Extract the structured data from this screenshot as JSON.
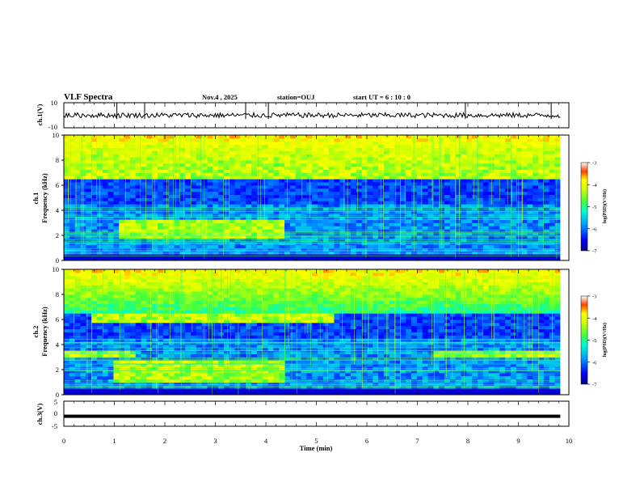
{
  "header": {
    "title": "VLF Spectra",
    "date": "Nov.4 , 2025",
    "station": "station=OUJ",
    "start_ut": "start  UT =  6 : 10 : 0"
  },
  "chart_data": {
    "type": "heatmap",
    "title": "VLF Spectra",
    "xlabel": "Time  (min)",
    "xlim": [
      0,
      10
    ],
    "xticks": [
      "0",
      "1",
      "2",
      "3",
      "4",
      "5",
      "6",
      "7",
      "8",
      "9",
      "10"
    ],
    "data_end_min": 9.83,
    "panels": [
      {
        "id": "ch1-waveform",
        "type": "line",
        "ylabel": "ch.1(V)",
        "ylim": [
          -10,
          10
        ],
        "yticks": [
          "10",
          "-10"
        ],
        "baseline": 0,
        "amplitude_typical": 2
      },
      {
        "id": "ch1-spectrogram",
        "type": "heatmap",
        "ylabel_line1": "ch.1",
        "ylabel_line2": "Frequency  (kHz)",
        "ylim": [
          0,
          10
        ],
        "yticks": [
          "0",
          "2",
          "4",
          "6",
          "8",
          "10"
        ],
        "colorbar": {
          "label": "log(PSD)(V²/Hz)",
          "range": [
            -7,
            -3
          ],
          "ticks": [
            "-3",
            "-4",
            "-5",
            "-6",
            "-7"
          ]
        },
        "features": [
          {
            "t0": 1.05,
            "t1": 4.4,
            "f0": 1.8,
            "f1": 3.3,
            "label": "enhanced band 1.8-3.3 kHz"
          },
          {
            "t0": 0,
            "t1": 9.83,
            "f0": 6.5,
            "f1": 10,
            "label": "broadband upper emission"
          }
        ]
      },
      {
        "id": "ch2-spectrogram",
        "type": "heatmap",
        "ylabel_line1": "ch.2",
        "ylabel_line2": "Frequency  (kHz)",
        "ylim": [
          0,
          10
        ],
        "yticks": [
          "0",
          "2",
          "4",
          "6",
          "8",
          "10"
        ],
        "colorbar": {
          "label": "log(PSD)(V²/Hz)",
          "range": [
            -7,
            -3
          ],
          "ticks": [
            "-3",
            "-4",
            "-5",
            "-6",
            "-7"
          ]
        },
        "features": [
          {
            "t0": 1.0,
            "t1": 4.4,
            "f0": 0.9,
            "f1": 2.7,
            "label": "enhanced band 0.9-2.7 kHz"
          },
          {
            "t0": 0,
            "t1": 1.4,
            "f0": 2.9,
            "f1": 3.4,
            "label": "band near 3 kHz"
          },
          {
            "t0": 7.3,
            "t1": 9.83,
            "f0": 3.0,
            "f1": 3.5,
            "label": "band near 3 kHz"
          },
          {
            "t0": 0.6,
            "t1": 5.4,
            "f0": 5.8,
            "f1": 6.6,
            "label": "band near 6 kHz"
          }
        ]
      },
      {
        "id": "ch3-waveform",
        "type": "line",
        "ylabel": "ch.3(V)",
        "ylim": [
          -5,
          5
        ],
        "yticks": [
          "5",
          "0",
          "-5"
        ],
        "baseline": -1
      }
    ],
    "colors": {
      "colormap": [
        "#000080",
        "#0000ff",
        "#0088ff",
        "#00e0ff",
        "#40ff90",
        "#c0ff20",
        "#ffff00",
        "#ff8000",
        "#ff0000",
        "#800000"
      ]
    }
  }
}
